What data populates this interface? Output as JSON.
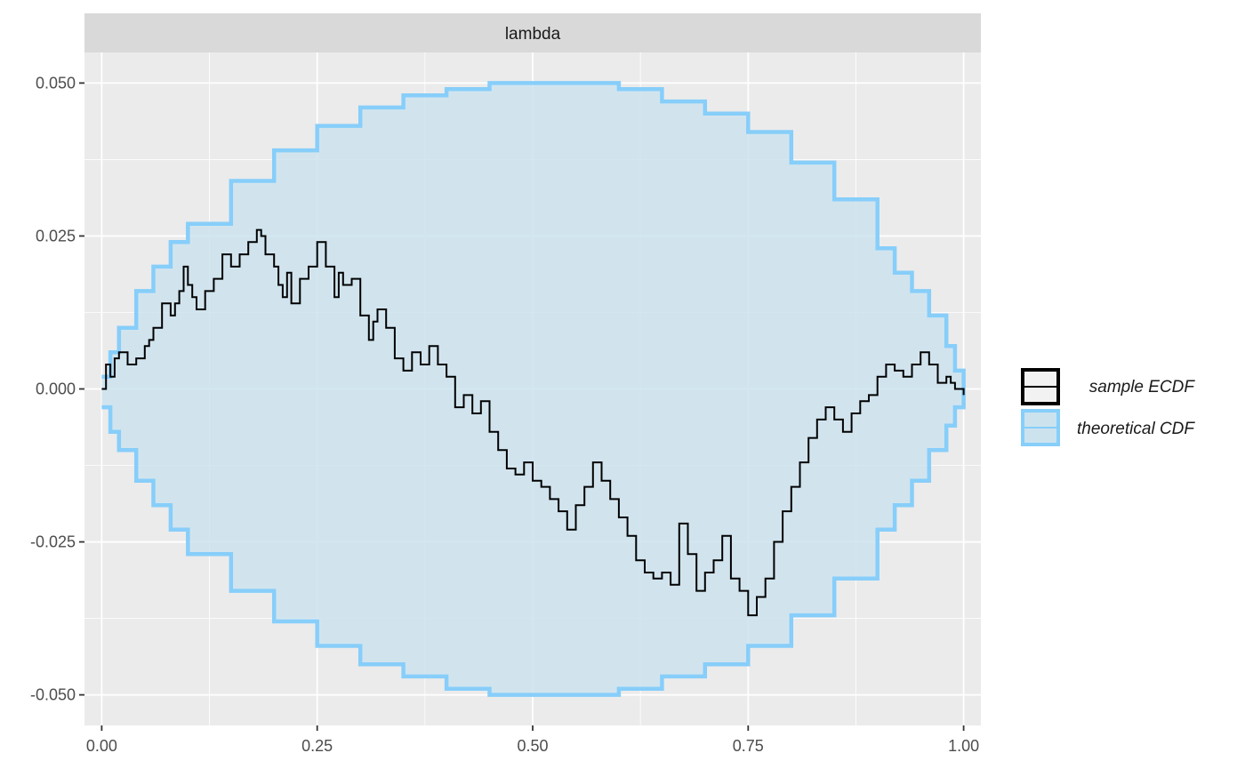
{
  "chart_data": {
    "type": "line",
    "facet_label": "lambda",
    "xlabel": "",
    "ylabel": "",
    "xlim": [
      -0.02,
      1.02
    ],
    "ylim": [
      -0.055,
      0.055
    ],
    "x_ticks": [
      0,
      0.25,
      0.5,
      0.75,
      1
    ],
    "x_tick_labels": [
      "0.00",
      "0.25",
      "0.50",
      "0.75",
      "1.00"
    ],
    "y_ticks": [
      -0.05,
      -0.025,
      0,
      0.025,
      0.05
    ],
    "y_tick_labels": [
      "-0.050",
      "-0.025",
      "0.000",
      "0.025",
      "0.050"
    ],
    "grid": true,
    "legend_position": "right",
    "colors": {
      "panel": "#ebebeb",
      "strip": "#d9d9d9",
      "grid": "#ffffff",
      "band_fill": "#cce3ee",
      "band_line": "#87cefa",
      "ecdf_line": "#000000"
    },
    "series": [
      {
        "name": "sample ECDF",
        "style": "step",
        "x": [
          0,
          0.005,
          0.01,
          0.015,
          0.02,
          0.03,
          0.04,
          0.05,
          0.055,
          0.06,
          0.07,
          0.08,
          0.085,
          0.09,
          0.095,
          0.1,
          0.105,
          0.11,
          0.12,
          0.13,
          0.14,
          0.15,
          0.16,
          0.17,
          0.18,
          0.185,
          0.19,
          0.2,
          0.205,
          0.21,
          0.215,
          0.22,
          0.23,
          0.24,
          0.25,
          0.26,
          0.27,
          0.275,
          0.28,
          0.29,
          0.3,
          0.31,
          0.315,
          0.32,
          0.33,
          0.34,
          0.35,
          0.36,
          0.37,
          0.38,
          0.39,
          0.4,
          0.41,
          0.42,
          0.43,
          0.44,
          0.45,
          0.46,
          0.47,
          0.48,
          0.49,
          0.5,
          0.51,
          0.52,
          0.53,
          0.54,
          0.55,
          0.56,
          0.57,
          0.58,
          0.59,
          0.6,
          0.61,
          0.62,
          0.63,
          0.64,
          0.65,
          0.66,
          0.67,
          0.68,
          0.69,
          0.7,
          0.71,
          0.72,
          0.73,
          0.74,
          0.75,
          0.76,
          0.77,
          0.78,
          0.79,
          0.8,
          0.81,
          0.82,
          0.83,
          0.84,
          0.85,
          0.86,
          0.87,
          0.88,
          0.89,
          0.9,
          0.91,
          0.92,
          0.93,
          0.94,
          0.95,
          0.96,
          0.97,
          0.98,
          0.985,
          0.99,
          1.0
        ],
        "values": [
          0,
          0.004,
          0.002,
          0.005,
          0.006,
          0.004,
          0.005,
          0.007,
          0.008,
          0.01,
          0.014,
          0.012,
          0.014,
          0.016,
          0.02,
          0.017,
          0.015,
          0.013,
          0.016,
          0.018,
          0.022,
          0.02,
          0.022,
          0.024,
          0.026,
          0.025,
          0.022,
          0.02,
          0.017,
          0.015,
          0.019,
          0.014,
          0.018,
          0.02,
          0.024,
          0.02,
          0.015,
          0.019,
          0.017,
          0.018,
          0.012,
          0.008,
          0.011,
          0.013,
          0.01,
          0.005,
          0.003,
          0.006,
          0.004,
          0.007,
          0.004,
          0.002,
          -0.003,
          -0.001,
          -0.004,
          -0.002,
          -0.007,
          -0.01,
          -0.013,
          -0.014,
          -0.012,
          -0.015,
          -0.016,
          -0.018,
          -0.02,
          -0.023,
          -0.019,
          -0.016,
          -0.012,
          -0.015,
          -0.018,
          -0.021,
          -0.024,
          -0.028,
          -0.03,
          -0.031,
          -0.03,
          -0.032,
          -0.022,
          -0.027,
          -0.033,
          -0.03,
          -0.028,
          -0.024,
          -0.031,
          -0.033,
          -0.037,
          -0.034,
          -0.031,
          -0.025,
          -0.02,
          -0.016,
          -0.012,
          -0.008,
          -0.005,
          -0.003,
          -0.005,
          -0.007,
          -0.004,
          -0.002,
          -0.001,
          0.002,
          0.004,
          0.003,
          0.002,
          0.004,
          0.006,
          0.004,
          0.001,
          0.002,
          0.001,
          0.0,
          -0.001
        ]
      },
      {
        "name": "theoretical CDF",
        "style": "band",
        "x": [
          0,
          0.01,
          0.02,
          0.04,
          0.06,
          0.08,
          0.1,
          0.15,
          0.2,
          0.25,
          0.3,
          0.35,
          0.4,
          0.45,
          0.5,
          0.55,
          0.6,
          0.65,
          0.7,
          0.75,
          0.8,
          0.85,
          0.9,
          0.92,
          0.94,
          0.96,
          0.98,
          0.99,
          1.0
        ],
        "upper": [
          0.002,
          0.006,
          0.01,
          0.016,
          0.02,
          0.024,
          0.027,
          0.034,
          0.039,
          0.043,
          0.046,
          0.048,
          0.049,
          0.05,
          0.05,
          0.05,
          0.049,
          0.047,
          0.045,
          0.042,
          0.037,
          0.031,
          0.023,
          0.019,
          0.016,
          0.012,
          0.007,
          0.003,
          0.0
        ],
        "lower": [
          -0.003,
          -0.007,
          -0.01,
          -0.015,
          -0.019,
          -0.023,
          -0.027,
          -0.033,
          -0.038,
          -0.042,
          -0.045,
          -0.047,
          -0.049,
          -0.05,
          -0.05,
          -0.05,
          -0.049,
          -0.047,
          -0.045,
          -0.042,
          -0.037,
          -0.031,
          -0.023,
          -0.019,
          -0.015,
          -0.01,
          -0.006,
          -0.003,
          0.0
        ]
      }
    ]
  }
}
